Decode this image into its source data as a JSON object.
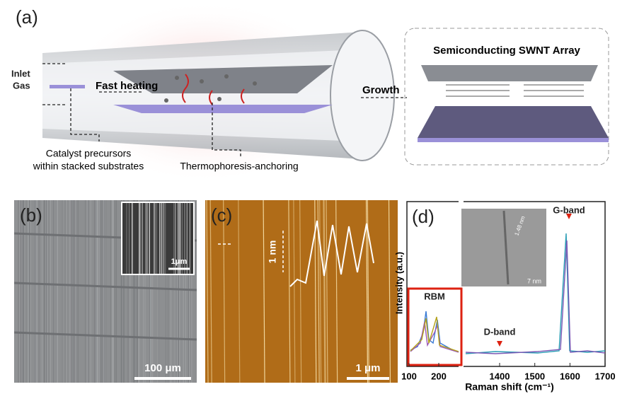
{
  "panel_a": {
    "label": "(a)",
    "inlet": [
      "Inlet",
      "Gas"
    ],
    "fast_heating": "Fast heating",
    "growth": "Growth",
    "array_title": "Semiconducting SWNT Array",
    "catalyst": [
      "Catalyst precursors",
      "within stacked substrates"
    ],
    "thermophoresis": "Thermophoresis-anchoring"
  },
  "panel_b": {
    "label": "(b)",
    "inset_scale": "1μm",
    "scale": "100 μm"
  },
  "panel_c": {
    "label": "(c)",
    "height_scale": "1 nm",
    "scale": "1 μm"
  },
  "panel_d": {
    "label": "(d)",
    "g_band": "G-band",
    "d_band": "D-band",
    "rbm": "RBM",
    "diameter": "1.48 nm",
    "inset_scale": "7 nm",
    "y_label": "Intensity  (a.u.)",
    "x_label": "Raman shift  (cm⁻¹)",
    "xticks_left": [
      100,
      200
    ],
    "xticks_right": [
      1400,
      1500,
      1600,
      1700
    ]
  }
}
